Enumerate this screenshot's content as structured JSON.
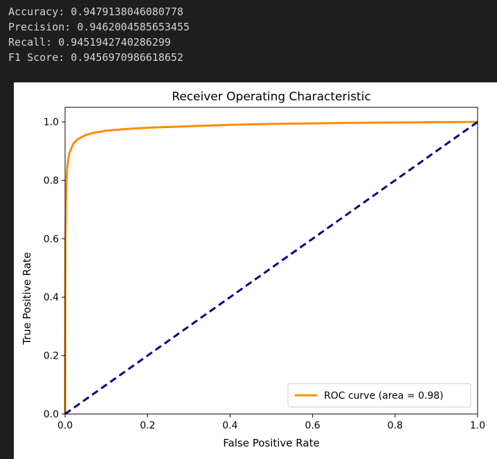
{
  "output": {
    "lines": [
      "Accuracy: 0.9479138046080778",
      "Precision: 0.9462004585653455",
      "Recall: 0.9451942740286299",
      "F1 Score: 0.9456970986618652"
    ]
  },
  "colors": {
    "background": "#1e1e1e",
    "text": "#d4d4d4",
    "roc": "#ff8c00",
    "diagonal": "#000080"
  },
  "chart_data": {
    "type": "line",
    "title": "Receiver Operating Characteristic",
    "xlabel": "False Positive Rate",
    "ylabel": "True Positive Rate",
    "xlim": [
      0,
      1
    ],
    "ylim": [
      0,
      1.05
    ],
    "xticks": [
      "0.0",
      "0.2",
      "0.4",
      "0.6",
      "0.8",
      "1.0"
    ],
    "yticks": [
      "0.0",
      "0.2",
      "0.4",
      "0.6",
      "0.8",
      "1.0"
    ],
    "grid": false,
    "legend_position": "lower-right",
    "series": [
      {
        "name": "ROC curve (area = 0.98)",
        "color": "#ff8c00",
        "style": "solid",
        "x": [
          0,
          0.0005,
          0.001,
          0.002,
          0.003,
          0.005,
          0.0075,
          0.01,
          0.015,
          0.02,
          0.03,
          0.05,
          0.07,
          0.1,
          0.15,
          0.2,
          0.3,
          0.4,
          0.5,
          0.6,
          0.7,
          0.8,
          0.9,
          1.0
        ],
        "y": [
          0,
          0.4,
          0.6,
          0.72,
          0.79,
          0.84,
          0.87,
          0.89,
          0.91,
          0.925,
          0.94,
          0.955,
          0.963,
          0.97,
          0.976,
          0.98,
          0.985,
          0.99,
          0.993,
          0.995,
          0.997,
          0.998,
          0.999,
          1.0
        ]
      },
      {
        "color": "#000080",
        "style": "dashed",
        "x": [
          0,
          1
        ],
        "y": [
          0,
          1
        ]
      }
    ]
  }
}
